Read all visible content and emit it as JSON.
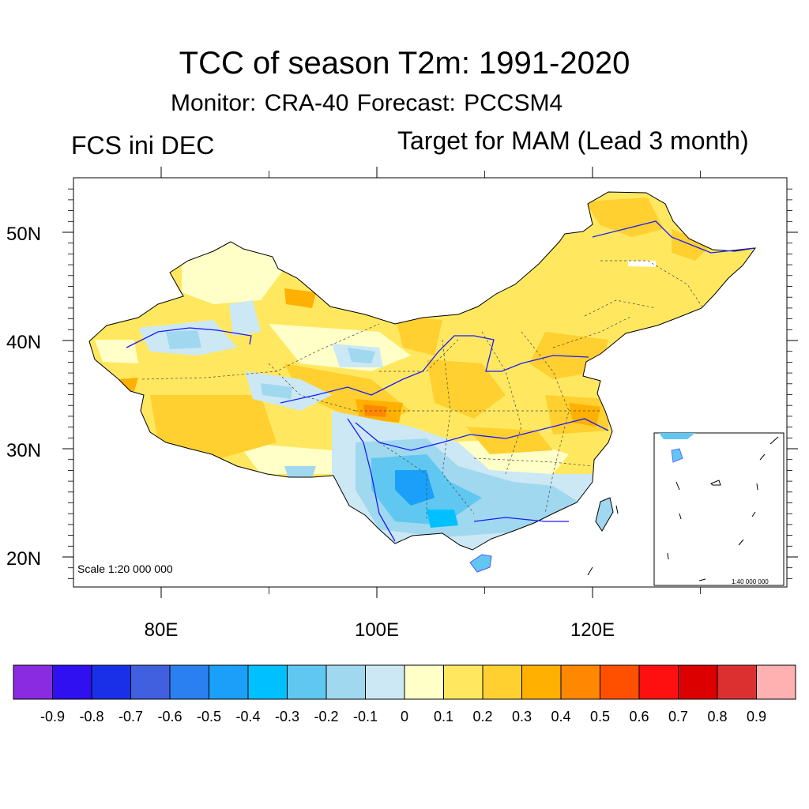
{
  "title": "TCC of season T2m: 1991-2020",
  "subtitle": "Monitor: CRA-40   Forecast: PCCSM4",
  "left_label": "FCS ini DEC",
  "right_label": "Target for MAM (Lead 3 month)",
  "map": {
    "scale_main": "Scale 1:20 000 000",
    "scale_inset": "1:40 000 000",
    "lat_labels": [
      {
        "text": "50N",
        "value": 50
      },
      {
        "text": "40N",
        "value": 40
      },
      {
        "text": "30N",
        "value": 30
      },
      {
        "text": "20N",
        "value": 20
      }
    ],
    "lon_labels": [
      {
        "text": "80E",
        "value": 80
      },
      {
        "text": "100E",
        "value": 100
      },
      {
        "text": "120E",
        "value": 120
      }
    ]
  },
  "colorbar": {
    "colors": [
      "#8a2be2",
      "#3010f0",
      "#1a30e8",
      "#4060e0",
      "#2a80f0",
      "#1aa0f8",
      "#00c0ff",
      "#60c8f0",
      "#a0d8f0",
      "#cce8f4",
      "#ffffc8",
      "#ffe860",
      "#ffd030",
      "#ffb000",
      "#ff8800",
      "#ff5000",
      "#ff1010",
      "#dc0000",
      "#dc3030",
      "#ffb0b0"
    ],
    "labels": [
      "-0.9",
      "-0.8",
      "-0.7",
      "-0.6",
      "-0.5",
      "-0.4",
      "-0.3",
      "-0.2",
      "-0.1",
      "0",
      "0.1",
      "0.2",
      "0.3",
      "0.4",
      "0.5",
      "0.6",
      "0.7",
      "0.8",
      "0.9"
    ]
  }
}
